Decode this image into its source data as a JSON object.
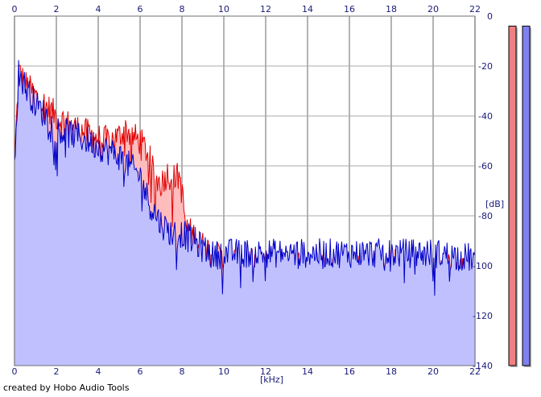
{
  "chart_data": {
    "type": "area",
    "title": "",
    "xlabel": "[kHz]",
    "ylabel": "[dB]",
    "xlim": [
      0,
      22
    ],
    "ylim": [
      -140,
      0
    ],
    "x_ticks": [
      0,
      2,
      4,
      6,
      8,
      10,
      12,
      14,
      16,
      18,
      20,
      22
    ],
    "y_ticks": [
      0,
      -20,
      -40,
      -60,
      -80,
      -100,
      -120,
      -140
    ],
    "y_tick_labels": [
      "0",
      "-20",
      "-40",
      "-60",
      "-80",
      "-100",
      "-120",
      "-140"
    ],
    "grid": true,
    "series": [
      {
        "color": "#e00000",
        "fill": "#ffbcbc",
        "points": [
          [
            0,
            -60
          ],
          [
            0.2,
            -22
          ],
          [
            0.5,
            -27
          ],
          [
            1,
            -32
          ],
          [
            1.5,
            -36
          ],
          [
            2,
            -40
          ],
          [
            2.5,
            -43
          ],
          [
            3,
            -45
          ],
          [
            3.5,
            -47
          ],
          [
            4,
            -49
          ],
          [
            4.5,
            -50
          ],
          [
            5,
            -48
          ],
          [
            5.3,
            -45
          ],
          [
            5.6,
            -48
          ],
          [
            6,
            -50
          ],
          [
            6.4,
            -55
          ],
          [
            6.7,
            -65
          ],
          [
            7,
            -67
          ],
          [
            7.3,
            -63
          ],
          [
            7.6,
            -65
          ],
          [
            7.9,
            -64
          ],
          [
            8.2,
            -85
          ],
          [
            8.6,
            -88
          ],
          [
            9,
            -92
          ],
          [
            9.5,
            -95
          ],
          [
            10,
            -98
          ],
          [
            11,
            -99
          ],
          [
            12,
            -99
          ],
          [
            13,
            -99
          ],
          [
            14,
            -99
          ],
          [
            15,
            -100
          ],
          [
            16,
            -100
          ],
          [
            17,
            -99
          ],
          [
            18,
            -99
          ],
          [
            19,
            -99
          ],
          [
            20,
            -100
          ],
          [
            21,
            -100
          ],
          [
            21.6,
            -102
          ],
          [
            22,
            -104
          ]
        ]
      },
      {
        "color": "#0000c8",
        "fill": "#c0c0ff",
        "points": [
          [
            0,
            -58
          ],
          [
            0.2,
            -22
          ],
          [
            0.5,
            -28
          ],
          [
            1,
            -35
          ],
          [
            1.5,
            -40
          ],
          [
            2,
            -45
          ],
          [
            2.5,
            -47
          ],
          [
            3,
            -48
          ],
          [
            3.5,
            -50
          ],
          [
            4,
            -52
          ],
          [
            4.5,
            -54
          ],
          [
            5,
            -56
          ],
          [
            5.5,
            -60
          ],
          [
            6,
            -64
          ],
          [
            6.5,
            -76
          ],
          [
            7,
            -83
          ],
          [
            7.5,
            -87
          ],
          [
            8,
            -87
          ],
          [
            8.5,
            -90
          ],
          [
            9,
            -93
          ],
          [
            9.5,
            -96
          ],
          [
            10,
            -95
          ],
          [
            11,
            -95
          ],
          [
            12,
            -95
          ],
          [
            13,
            -95
          ],
          [
            14,
            -95
          ],
          [
            15,
            -95
          ],
          [
            16,
            -95
          ],
          [
            17,
            -95
          ],
          [
            18,
            -95
          ],
          [
            19,
            -95
          ],
          [
            20,
            -95
          ],
          [
            21,
            -96
          ],
          [
            22,
            -97
          ]
        ]
      }
    ],
    "level_meters": [
      {
        "color": "#f08080",
        "level_db": -4
      },
      {
        "color": "#8080f0",
        "level_db": -4
      }
    ]
  },
  "footer": {
    "credit": "created by Hobo Audio Tools"
  }
}
